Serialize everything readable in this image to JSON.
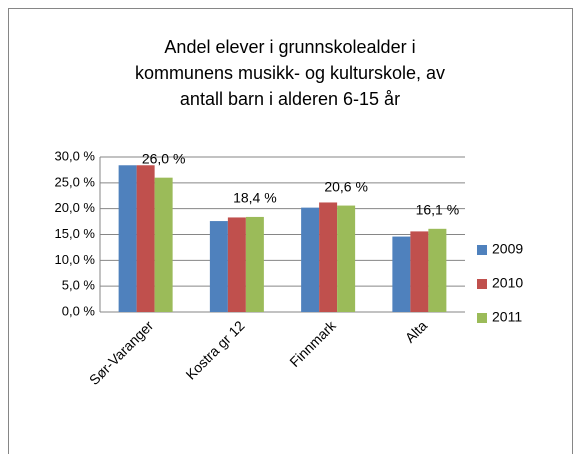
{
  "chart_data": {
    "type": "bar",
    "title": [
      "Andel elever i grunnskolealder i",
      "kommunens musikk- og kulturskole, av",
      "antall barn i alderen 6-15 år"
    ],
    "categories": [
      "Sør-Varanger",
      "Kostra gr 12",
      "Finnmark",
      "Alta"
    ],
    "series": [
      {
        "name": "2009",
        "color": "#4f81bd",
        "values": [
          28.4,
          17.6,
          20.2,
          14.6
        ]
      },
      {
        "name": "2010",
        "color": "#c0504d",
        "values": [
          28.4,
          18.3,
          21.2,
          15.6
        ]
      },
      {
        "name": "2011",
        "color": "#9bbb59",
        "values": [
          26.0,
          18.4,
          20.6,
          16.1
        ],
        "value_labels": [
          "26,0 %",
          "18,4 %",
          "20,6 %",
          "16,1 %"
        ]
      }
    ],
    "ylim": [
      0,
      30
    ],
    "yticks": [
      {
        "value": 0,
        "label": "0,0 %"
      },
      {
        "value": 5,
        "label": "5,0 %"
      },
      {
        "value": 10,
        "label": "10,0 %"
      },
      {
        "value": 15,
        "label": "15,0 %"
      },
      {
        "value": 20,
        "label": "20,0 %"
      },
      {
        "value": 25,
        "label": "25,0 %"
      },
      {
        "value": 30,
        "label": "30,0 %"
      }
    ],
    "grid": true,
    "legend": "right"
  }
}
